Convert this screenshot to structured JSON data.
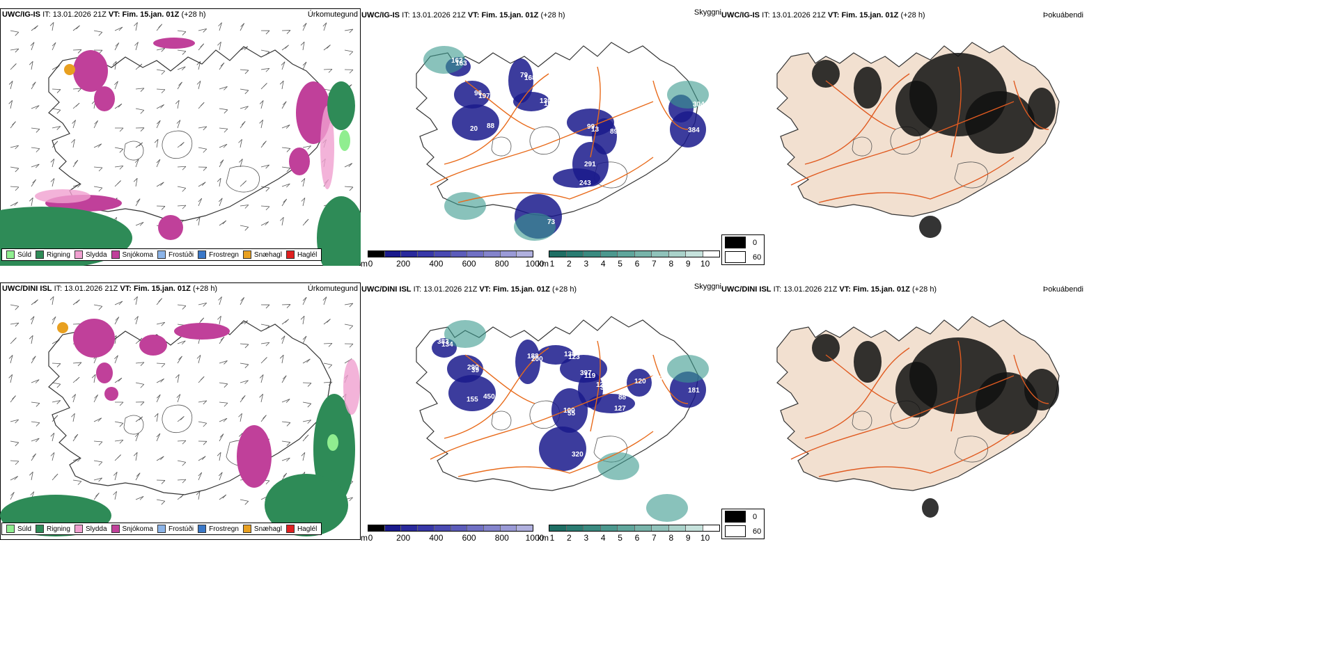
{
  "colors": {
    "suld": "#90ee90",
    "rigning": "#2e8b57",
    "slydda": "#f0a0d0",
    "snjokoma": "#c0409a",
    "frostudi": "#8cb4e8",
    "frostregn": "#3a78c8",
    "snaehagl": "#e8a020",
    "haglel": "#e02020",
    "cloud_dark": "#1a1a8c",
    "cloud_light": "#3a9a8e",
    "roads": "#e86a1a",
    "land": "#f2e0d0",
    "fog": "#111111"
  },
  "rows": [
    {
      "model": "UWC/IG-IS",
      "it_label": "IT:",
      "it_value": "13.01.2026 21Z",
      "vt_label": "VT:",
      "vt_value": "Fim. 15.jan. 01Z",
      "lead": "(+28 h)",
      "panels": {
        "precip_title": "Úrkomutegund",
        "cloud_title": "Skyggni",
        "fog_title": "Þokuábendi"
      },
      "cloud_labels": [
        "162",
        "96",
        "88",
        "79",
        "130",
        "99",
        "89",
        "291",
        "243",
        "304",
        "384",
        "73",
        "163",
        "197",
        "20",
        "168",
        "10",
        "13"
      ]
    },
    {
      "model": "UWC/DINI ISL",
      "it_label": "IT:",
      "it_value": "13.01.2026 21Z",
      "vt_label": "VT:",
      "vt_value": "Fim. 15.jan. 01Z",
      "lead": "(+28 h)",
      "panels": {
        "precip_title": "Úrkomutegund",
        "cloud_title": "Skyggni",
        "fog_title": "Þokuábendi"
      },
      "cloud_labels": [
        "383",
        "290",
        "450",
        "188",
        "138",
        "397",
        "122",
        "100",
        "127",
        "149",
        "181",
        "320",
        "134",
        "39",
        "155",
        "200",
        "123",
        "119",
        "310",
        "55",
        "88",
        "120"
      ]
    }
  ],
  "precip_legend": [
    {
      "label": "Súld",
      "color": "#90ee90"
    },
    {
      "label": "Rigning",
      "color": "#2e8b57"
    },
    {
      "label": "Slydda",
      "color": "#f0a0d0"
    },
    {
      "label": "Snjókoma",
      "color": "#c0409a"
    },
    {
      "label": "Frostúði",
      "color": "#8cb4e8"
    },
    {
      "label": "Frostregn",
      "color": "#3a78c8"
    },
    {
      "label": "Snæhagl",
      "color": "#e8a020"
    },
    {
      "label": "Haglél",
      "color": "#e02020"
    }
  ],
  "cbar_m": {
    "unit": "m",
    "ticks": [
      "0",
      "200",
      "400",
      "600",
      "800",
      "1000"
    ]
  },
  "cbar_km": {
    "unit": "km",
    "ticks": [
      "1",
      "2",
      "3",
      "4",
      "5",
      "6",
      "7",
      "8",
      "9",
      "10"
    ]
  },
  "fog_legend": [
    {
      "label": "0",
      "color": "#000000"
    },
    {
      "label": "60",
      "color": "#ffffff"
    }
  ]
}
